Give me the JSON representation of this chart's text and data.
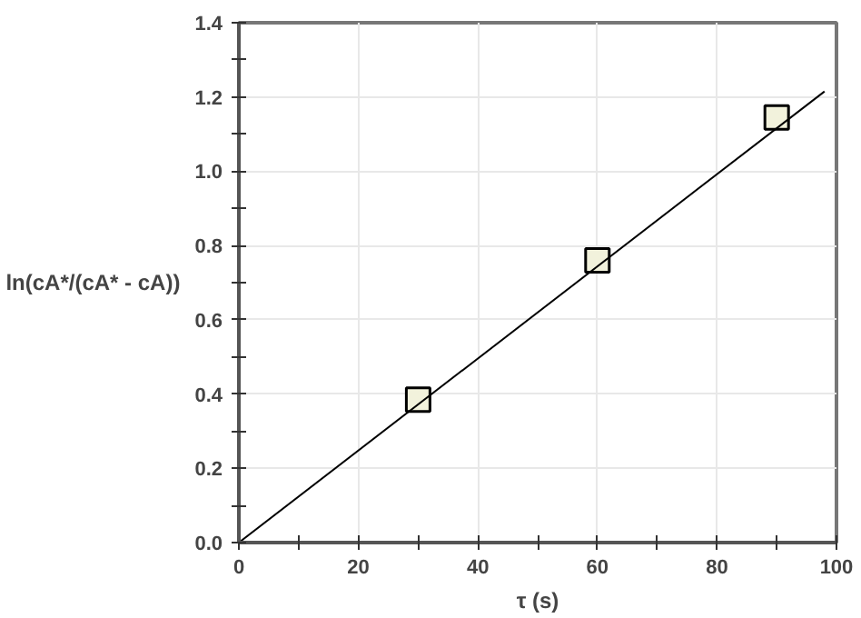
{
  "chart_data": {
    "type": "scatter",
    "xlabel": "τ (s)",
    "ylabel": "ln(cA*/(cA* - cA))",
    "xlim": [
      0,
      100
    ],
    "ylim": [
      0,
      1.4
    ],
    "xticks": [
      0,
      {
        "value": 10,
        "label": null
      },
      20,
      {
        "value": 30,
        "label": null
      },
      40,
      {
        "value": 50,
        "label": null
      },
      60,
      {
        "value": 70,
        "label": null
      },
      80,
      {
        "value": 90,
        "label": null
      },
      100
    ],
    "yticks": [
      "0.0",
      {
        "value": 0.1,
        "label": null
      },
      {
        "value": 0.2,
        "label": "0.2"
      },
      {
        "value": 0.3,
        "label": null
      },
      {
        "value": 0.4,
        "label": "0.4"
      },
      {
        "value": 0.5,
        "label": null
      },
      {
        "value": 0.6,
        "label": "0.6"
      },
      {
        "value": 0.7,
        "label": null
      },
      {
        "value": 0.8,
        "label": "0.8"
      },
      {
        "value": 0.9,
        "label": null
      },
      {
        "value": 1.0,
        "label": "1.0"
      },
      {
        "value": 1.1,
        "label": null
      },
      {
        "value": 1.2,
        "label": "1.2"
      },
      {
        "value": 1.3,
        "label": null
      },
      {
        "value": 1.4,
        "label": "1.4"
      }
    ],
    "grid": true,
    "marker": "square",
    "x": [
      30,
      60,
      90
    ],
    "series": [
      {
        "color": "#f2f2dc",
        "values": [
          0.385,
          0.76,
          1.145
        ]
      },
      {
        "type": "line",
        "color": "#000000",
        "x": [
          0,
          98
        ],
        "values": [
          0,
          1.215
        ],
        "marker": "none",
        "line_style": "solid"
      }
    ]
  }
}
